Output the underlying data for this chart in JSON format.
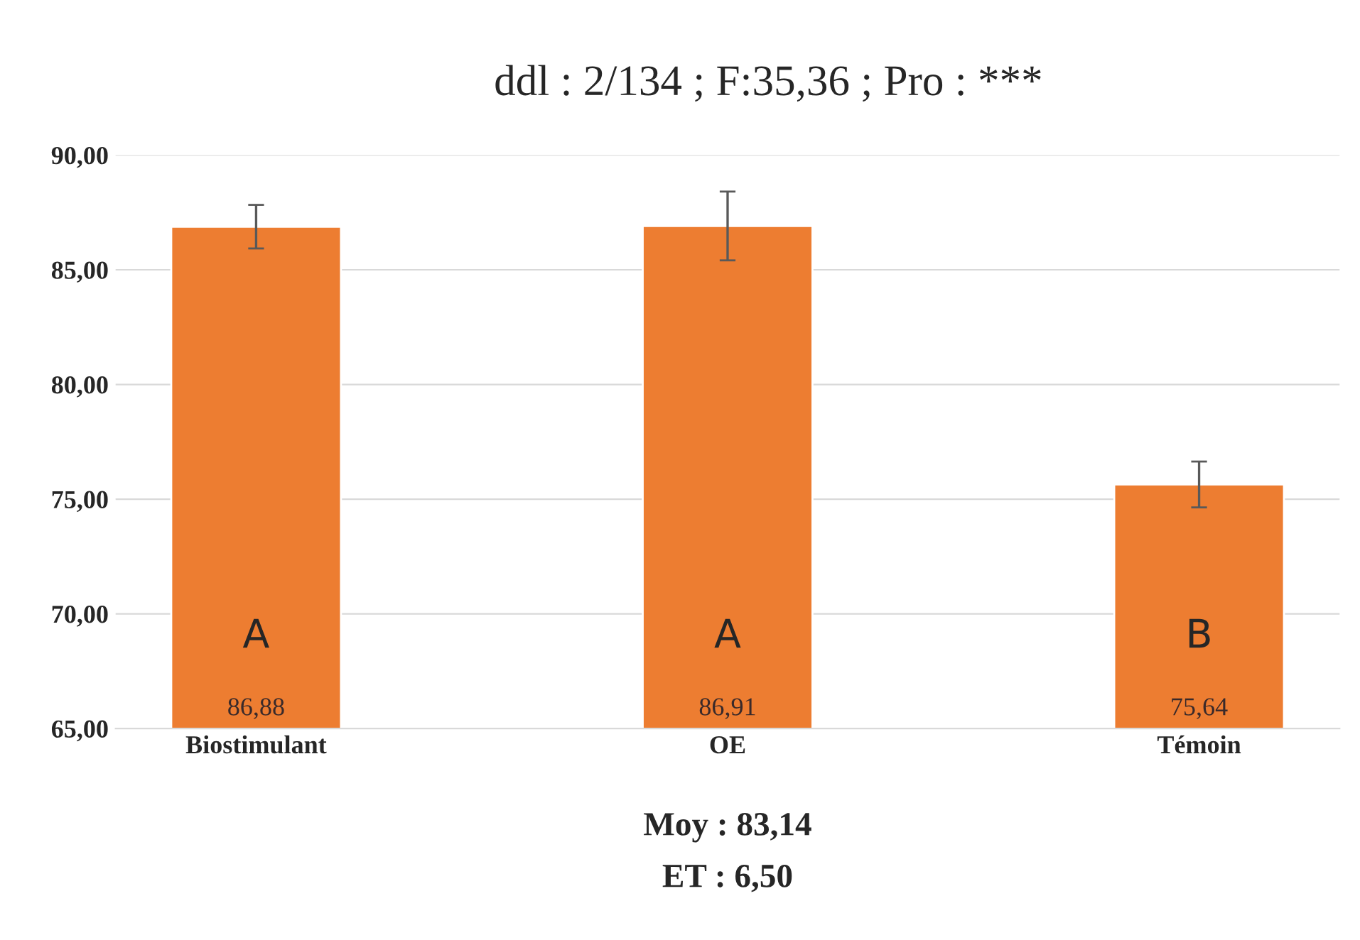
{
  "chart_data": {
    "type": "bar",
    "title": "ddl : 2/134 ; F:35,36 ; Pro : ***",
    "categories": [
      "Biostimulant",
      "OE",
      "Témoin"
    ],
    "values": [
      86.88,
      86.91,
      75.64
    ],
    "value_labels": [
      "86,88",
      "86,91",
      "75,64"
    ],
    "errors": [
      0.95,
      1.5,
      1.0
    ],
    "color": "#ed7d31",
    "ylim": [
      65,
      90
    ],
    "yticks": [
      {
        "value": 65,
        "label": "65,00"
      },
      {
        "value": 70,
        "label": "70,00"
      },
      {
        "value": 75,
        "label": "75,00"
      },
      {
        "value": 80,
        "label": "80,00"
      },
      {
        "value": 85,
        "label": "85,00"
      },
      {
        "value": 90,
        "label": "90,00"
      }
    ],
    "grid": "y",
    "annotations": [
      "A",
      "A",
      "B",
      "Moy : 83,14",
      "ET : 6,50"
    ]
  }
}
